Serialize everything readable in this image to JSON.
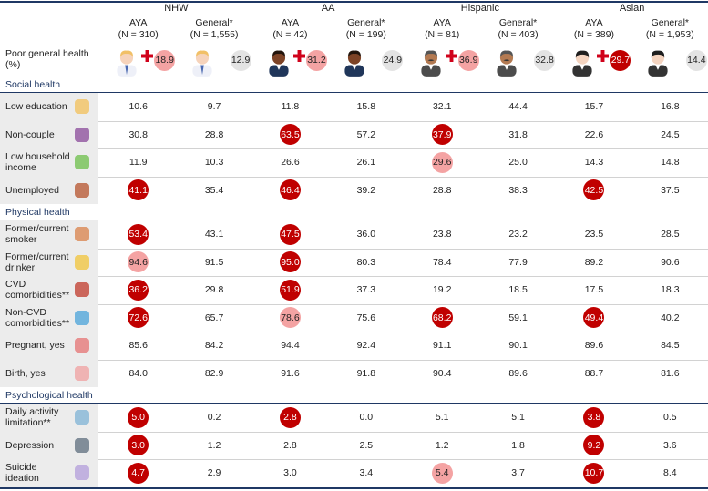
{
  "header": {
    "groups": [
      {
        "name": "NHW",
        "columns": [
          {
            "label": "AYA",
            "n": "(N = 310)"
          },
          {
            "label": "General*",
            "n": "(N = 1,555)"
          }
        ]
      },
      {
        "name": "AA",
        "columns": [
          {
            "label": "AYA",
            "n": "(N = 42)"
          },
          {
            "label": "General*",
            "n": "(N = 199)"
          }
        ]
      },
      {
        "name": "Hispanic",
        "columns": [
          {
            "label": "AYA",
            "n": "(N = 81)"
          },
          {
            "label": "General*",
            "n": "(N = 403)"
          }
        ]
      },
      {
        "name": "Asian",
        "columns": [
          {
            "label": "AYA",
            "n": "(N = 389)"
          },
          {
            "label": "General*",
            "n": "(N = 1,953)"
          }
        ]
      }
    ]
  },
  "poor_health": {
    "label": "Poor general health",
    "unit": "(%)",
    "values": [
      "18.9",
      "12.9",
      "31.2",
      "24.9",
      "36.9",
      "32.8",
      "29.7",
      "14.4"
    ],
    "dark": [
      6
    ],
    "light": [
      0,
      2,
      4
    ]
  },
  "sections": [
    {
      "title": "Social health",
      "rows": [
        {
          "label": "Low education",
          "values": [
            "10.6",
            "9.7",
            "11.8",
            "15.8",
            "32.1",
            "44.4",
            "15.7",
            "16.8"
          ]
        },
        {
          "label": "Non-couple",
          "values": [
            "30.8",
            "28.8",
            "63.5",
            "57.2",
            "37.9",
            "31.8",
            "22.6",
            "24.5"
          ],
          "dark": [
            2,
            4
          ]
        },
        {
          "label": "Low household income",
          "values": [
            "11.9",
            "10.3",
            "26.6",
            "26.1",
            "29.6",
            "25.0",
            "14.3",
            "14.8"
          ],
          "light": [
            4
          ]
        },
        {
          "label": "Unemployed",
          "values": [
            "41.1",
            "35.4",
            "46.4",
            "39.2",
            "28.8",
            "38.3",
            "42.5",
            "37.5"
          ],
          "dark": [
            0,
            2,
            6
          ]
        }
      ]
    },
    {
      "title": "Physical health",
      "rows": [
        {
          "label": "Former/current smoker",
          "values": [
            "53.4",
            "43.1",
            "47.5",
            "36.0",
            "23.8",
            "23.2",
            "23.5",
            "28.5"
          ],
          "dark": [
            0,
            2
          ]
        },
        {
          "label": "Former/current drinker",
          "values": [
            "94.6",
            "91.5",
            "95.0",
            "80.3",
            "78.4",
            "77.9",
            "89.2",
            "90.6"
          ],
          "dark": [
            2
          ],
          "light": [
            0
          ]
        },
        {
          "label": "CVD comorbidities**",
          "values": [
            "36.2",
            "29.8",
            "51.9",
            "37.3",
            "19.2",
            "18.5",
            "17.5",
            "18.3"
          ],
          "dark": [
            0,
            2
          ]
        },
        {
          "label": "Non-CVD comorbidities**",
          "values": [
            "72.6",
            "65.7",
            "78.6",
            "75.6",
            "68.2",
            "59.1",
            "49.4",
            "40.2"
          ],
          "dark": [
            0,
            4,
            6
          ],
          "light": [
            2
          ]
        },
        {
          "label": "Pregnant, yes",
          "values": [
            "85.6",
            "84.2",
            "94.4",
            "92.4",
            "91.1",
            "90.1",
            "89.6",
            "84.5"
          ]
        },
        {
          "label": "Birth, yes",
          "values": [
            "84.0",
            "82.9",
            "91.6",
            "91.8",
            "90.4",
            "89.6",
            "88.7",
            "81.6"
          ]
        }
      ]
    },
    {
      "title": "Psychological health",
      "rows": [
        {
          "label": "Daily activity limitation**",
          "values": [
            "5.0",
            "0.2",
            "2.8",
            "0.0",
            "5.1",
            "5.1",
            "3.8",
            "0.5"
          ],
          "dark": [
            0,
            2,
            6
          ]
        },
        {
          "label": "Depression",
          "values": [
            "3.0",
            "1.2",
            "2.8",
            "2.5",
            "1.2",
            "1.8",
            "9.2",
            "3.6"
          ],
          "dark": [
            0,
            6
          ]
        },
        {
          "label": "Suicide ideation",
          "values": [
            "4.7",
            "2.9",
            "3.0",
            "3.4",
            "5.4",
            "3.7",
            "10.7",
            "8.4"
          ],
          "dark": [
            0,
            6
          ],
          "light": [
            4
          ]
        }
      ]
    }
  ]
}
